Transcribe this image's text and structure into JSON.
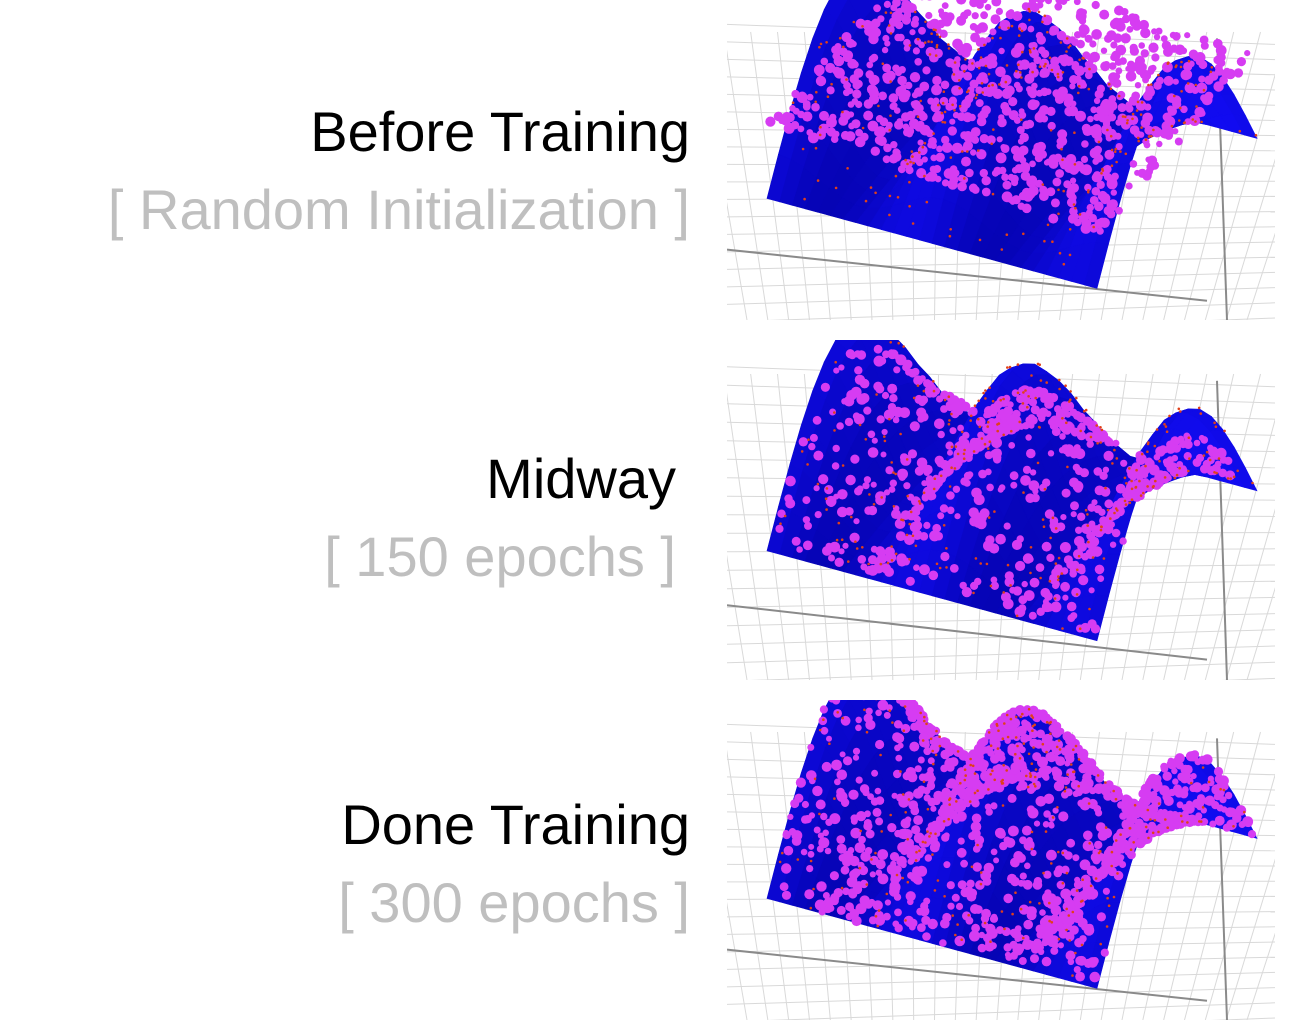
{
  "panels": [
    {
      "title": "Before Training",
      "subtitle": "[ Random Initialization ]",
      "state": "random",
      "colors": {
        "surface": "#1a10d8",
        "points": "#d63cf2",
        "samples": "#e0401a"
      }
    },
    {
      "title": "Midway",
      "subtitle": "[ 150 epochs ]",
      "state": "midway",
      "colors": {
        "surface": "#1a10d8",
        "points": "#d63cf2",
        "samples": "#e0401a"
      }
    },
    {
      "title": "Done Training",
      "subtitle": "[ 300 epochs ]",
      "state": "done",
      "colors": {
        "surface": "#1a10d8",
        "points": "#d63cf2",
        "samples": "#e0401a"
      }
    }
  ]
}
